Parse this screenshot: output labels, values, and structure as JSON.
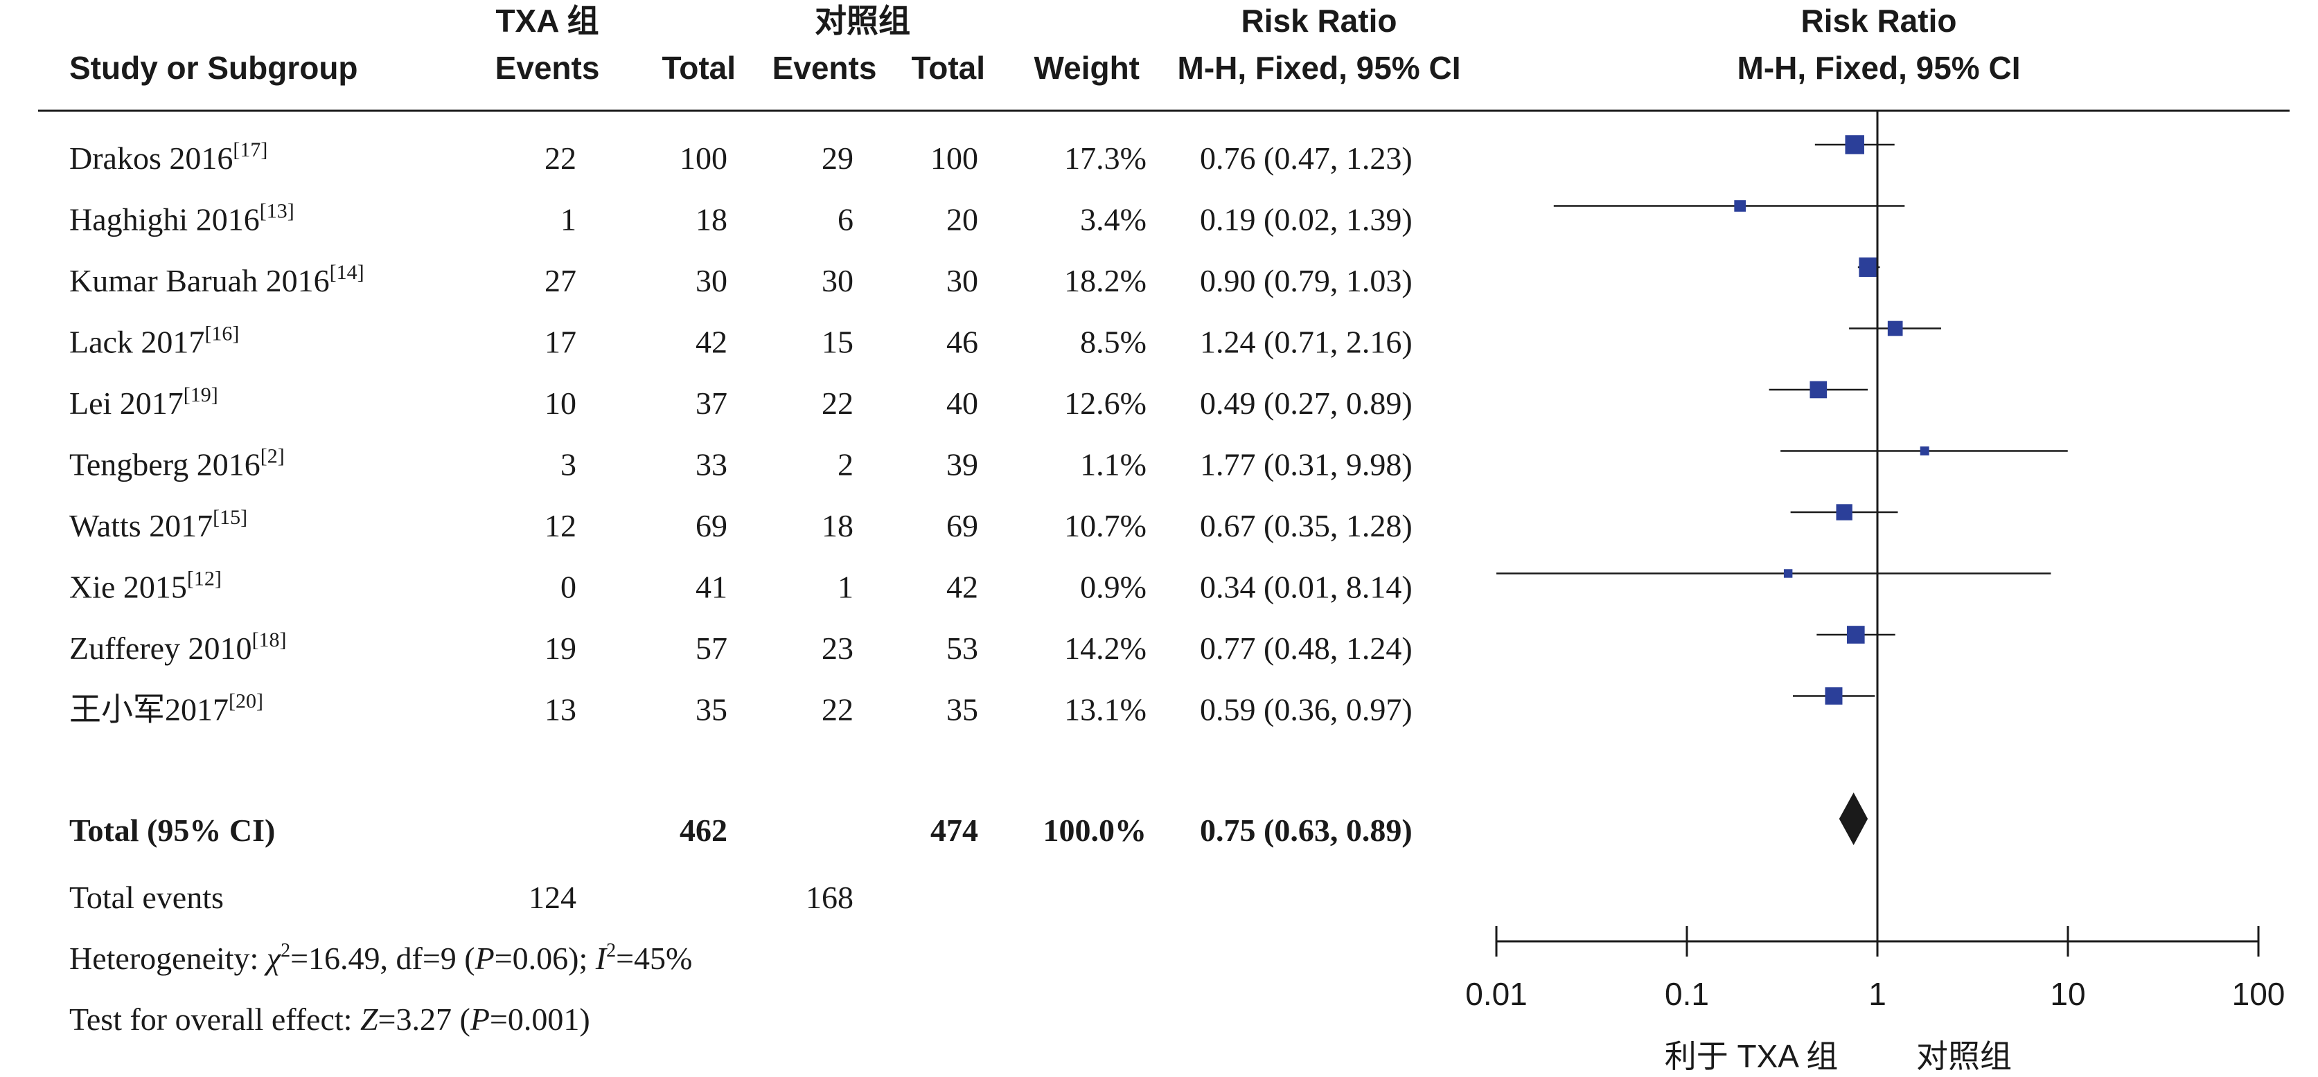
{
  "chart_data": {
    "type": "forest",
    "scale": "log",
    "xlim": [
      0.01,
      100
    ],
    "reference_line": 1,
    "headers": {
      "study": "Study or Subgroup",
      "group1": "TXA 组",
      "group2": "对照组",
      "events": "Events",
      "total": "Total",
      "weight": "Weight",
      "rr_title": "Risk Ratio",
      "rr_method": "M-H, Fixed, 95% CI",
      "plot_title": "Risk Ratio",
      "plot_method": "M-H, Fixed, 95% CI"
    },
    "studies": [
      {
        "name": "Drakos 2016",
        "ref": "[17]",
        "e1": "22",
        "n1": "100",
        "e2": "29",
        "n2": "100",
        "weight": "17.3%",
        "ci_text": "0.76 (0.47, 1.23)",
        "rr": 0.76,
        "lo": 0.47,
        "hi": 1.23,
        "w": 17.3
      },
      {
        "name": "Haghighi 2016",
        "ref": "[13]",
        "e1": "1",
        "n1": "18",
        "e2": "6",
        "n2": "20",
        "weight": "3.4%",
        "ci_text": "0.19 (0.02, 1.39)",
        "rr": 0.19,
        "lo": 0.02,
        "hi": 1.39,
        "w": 3.4
      },
      {
        "name": "Kumar Baruah 2016",
        "ref": "[14]",
        "e1": "27",
        "n1": "30",
        "e2": "30",
        "n2": "30",
        "weight": "18.2%",
        "ci_text": "0.90 (0.79, 1.03)",
        "rr": 0.9,
        "lo": 0.79,
        "hi": 1.03,
        "w": 18.2
      },
      {
        "name": "Lack 2017",
        "ref": "[16]",
        "e1": "17",
        "n1": "42",
        "e2": "15",
        "n2": "46",
        "weight": "8.5%",
        "ci_text": "1.24 (0.71, 2.16)",
        "rr": 1.24,
        "lo": 0.71,
        "hi": 2.16,
        "w": 8.5
      },
      {
        "name": "Lei 2017",
        "ref": "[19]",
        "e1": "10",
        "n1": "37",
        "e2": "22",
        "n2": "40",
        "weight": "12.6%",
        "ci_text": "0.49 (0.27, 0.89)",
        "rr": 0.49,
        "lo": 0.27,
        "hi": 0.89,
        "w": 12.6
      },
      {
        "name": "Tengberg 2016",
        "ref": "[2]",
        "e1": "3",
        "n1": "33",
        "e2": "2",
        "n2": "39",
        "weight": "1.1%",
        "ci_text": "1.77 (0.31, 9.98)",
        "rr": 1.77,
        "lo": 0.31,
        "hi": 9.98,
        "w": 1.1
      },
      {
        "name": "Watts 2017",
        "ref": "[15]",
        "e1": "12",
        "n1": "69",
        "e2": "18",
        "n2": "69",
        "weight": "10.7%",
        "ci_text": "0.67 (0.35, 1.28)",
        "rr": 0.67,
        "lo": 0.35,
        "hi": 1.28,
        "w": 10.7
      },
      {
        "name": "Xie 2015",
        "ref": "[12]",
        "e1": "0",
        "n1": "41",
        "e2": "1",
        "n2": "42",
        "weight": "0.9%",
        "ci_text": "0.34 (0.01, 8.14)",
        "rr": 0.34,
        "lo": 0.01,
        "hi": 8.14,
        "w": 0.9
      },
      {
        "name": "Zufferey 2010",
        "ref": "[18]",
        "e1": "19",
        "n1": "57",
        "e2": "23",
        "n2": "53",
        "weight": "14.2%",
        "ci_text": "0.77 (0.48, 1.24)",
        "rr": 0.77,
        "lo": 0.48,
        "hi": 1.24,
        "w": 14.2
      },
      {
        "name": "王小军2017",
        "ref": "[20]",
        "e1": "13",
        "n1": "35",
        "e2": "22",
        "n2": "35",
        "weight": "13.1%",
        "ci_text": "0.59 (0.36, 0.97)",
        "rr": 0.59,
        "lo": 0.36,
        "hi": 0.97,
        "w": 13.1
      }
    ],
    "total": {
      "label": "Total (95% CI)",
      "n1": "462",
      "n2": "474",
      "weight": "100.0%",
      "ci_text": "0.75 (0.63, 0.89)",
      "rr": 0.75,
      "lo": 0.63,
      "hi": 0.89
    },
    "total_events": {
      "label": "Total events",
      "e1": "124",
      "e2": "168"
    },
    "heterogeneity": {
      "prefix": "Heterogeneity: ",
      "chi_symbol": "χ",
      "chi_value": "=16.49, df=9 (",
      "p_symbol": "P",
      "p_value": "=0.06); ",
      "i_symbol": "I",
      "i_value": "=45%"
    },
    "overall_effect": {
      "prefix": "Test for overall effect: ",
      "z_symbol": "Z",
      "z_value": "=3.27 (",
      "p_symbol": "P",
      "p_value": "=0.001)"
    },
    "x_ticks": [
      {
        "value": 0.01,
        "label": "0.01"
      },
      {
        "value": 0.1,
        "label": "0.1"
      },
      {
        "value": 1,
        "label": "1"
      },
      {
        "value": 10,
        "label": "10"
      },
      {
        "value": 100,
        "label": "100"
      }
    ],
    "favours_left": "利于 TXA 组",
    "favours_right": "对照组",
    "colors": {
      "square": "#2b3f99",
      "diamond": "#1a1a1a",
      "line": "#1a1a1a"
    }
  }
}
